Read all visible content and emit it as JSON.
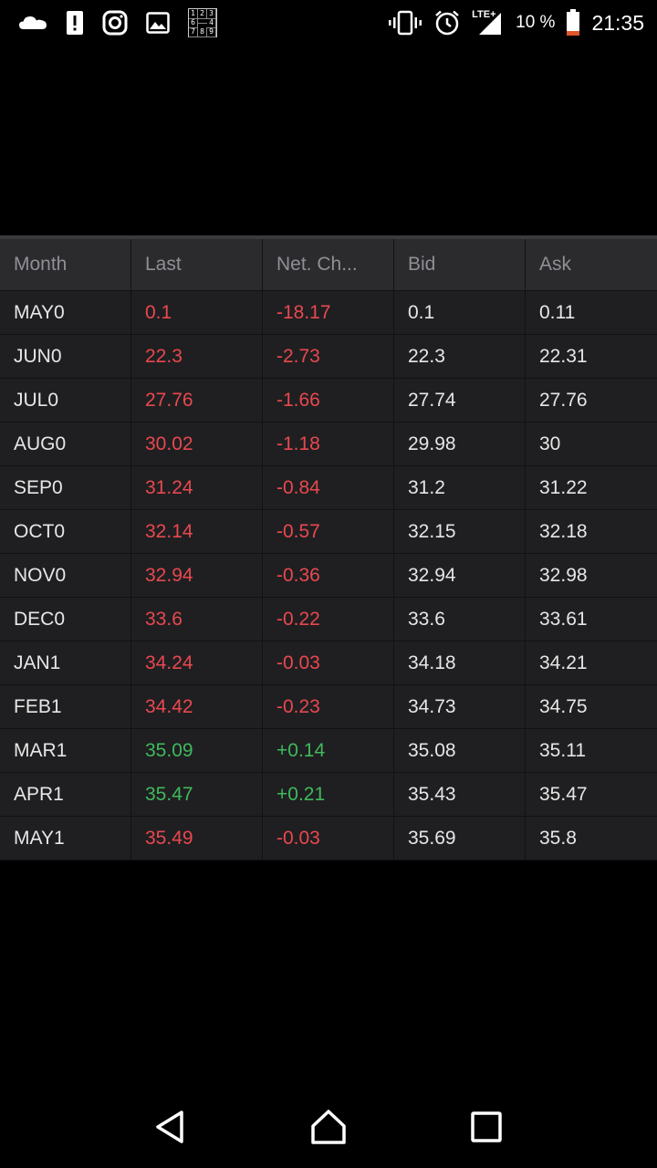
{
  "status_bar": {
    "left_icons": [
      "cloud-icon",
      "alert-icon",
      "instagram-icon",
      "image-icon",
      "sudoku-icon"
    ],
    "sudoku_digits": [
      "1",
      "2",
      "3",
      "6",
      "",
      "4",
      "7",
      "8",
      "9"
    ],
    "right_icons": [
      "vibrate-icon",
      "alarm-icon",
      "signal-lte-icon",
      "battery-icon"
    ],
    "lte_label": "LTE+",
    "battery_text": "10 %",
    "time": "21:35"
  },
  "table": {
    "columns": [
      "Month",
      "Last",
      "Net. Ch...",
      "Bid",
      "Ask"
    ],
    "rows": [
      {
        "month": "MAY0",
        "last": "0.1",
        "net": "-18.17",
        "bid": "0.1",
        "ask": "0.11",
        "trend": "neg"
      },
      {
        "month": "JUN0",
        "last": "22.3",
        "net": "-2.73",
        "bid": "22.3",
        "ask": "22.31",
        "trend": "neg"
      },
      {
        "month": "JUL0",
        "last": "27.76",
        "net": "-1.66",
        "bid": "27.74",
        "ask": "27.76",
        "trend": "neg"
      },
      {
        "month": "AUG0",
        "last": "30.02",
        "net": "-1.18",
        "bid": "29.98",
        "ask": "30",
        "trend": "neg"
      },
      {
        "month": "SEP0",
        "last": "31.24",
        "net": "-0.84",
        "bid": "31.2",
        "ask": "31.22",
        "trend": "neg"
      },
      {
        "month": "OCT0",
        "last": "32.14",
        "net": "-0.57",
        "bid": "32.15",
        "ask": "32.18",
        "trend": "neg"
      },
      {
        "month": "NOV0",
        "last": "32.94",
        "net": "-0.36",
        "bid": "32.94",
        "ask": "32.98",
        "trend": "neg"
      },
      {
        "month": "DEC0",
        "last": "33.6",
        "net": "-0.22",
        "bid": "33.6",
        "ask": "33.61",
        "trend": "neg"
      },
      {
        "month": "JAN1",
        "last": "34.24",
        "net": "-0.03",
        "bid": "34.18",
        "ask": "34.21",
        "trend": "neg"
      },
      {
        "month": "FEB1",
        "last": "34.42",
        "net": "-0.23",
        "bid": "34.73",
        "ask": "34.75",
        "trend": "neg"
      },
      {
        "month": "MAR1",
        "last": "35.09",
        "net": "+0.14",
        "bid": "35.08",
        "ask": "35.11",
        "trend": "pos"
      },
      {
        "month": "APR1",
        "last": "35.47",
        "net": "+0.21",
        "bid": "35.43",
        "ask": "35.47",
        "trend": "pos"
      },
      {
        "month": "MAY1",
        "last": "35.49",
        "net": "-0.03",
        "bid": "35.69",
        "ask": "35.8",
        "trend": "neg"
      }
    ]
  },
  "colors": {
    "negative": "#e8484f",
    "positive": "#3fb95c",
    "table_bg": "#1f1f21",
    "header_bg": "#2b2b2e"
  },
  "nav_bar": {
    "buttons": [
      "back-icon",
      "home-icon",
      "recents-icon"
    ]
  }
}
